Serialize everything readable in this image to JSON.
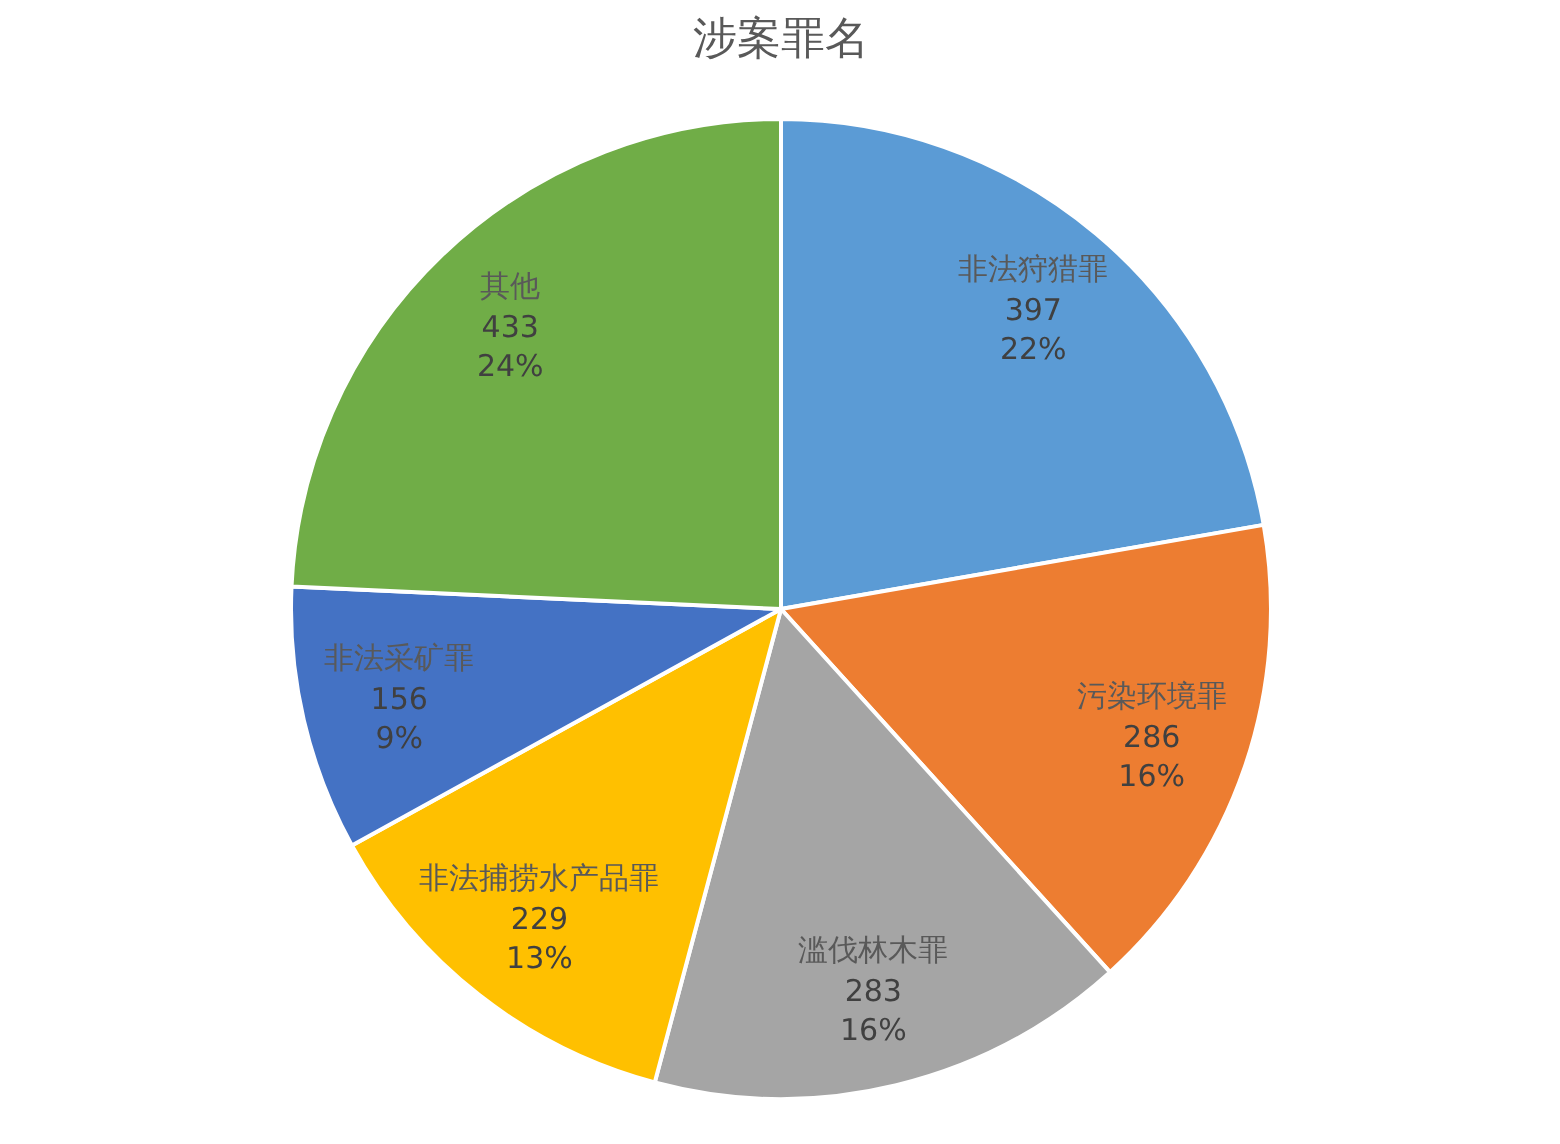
{
  "chart_data": {
    "type": "pie",
    "title": "涉案罪名",
    "categories": [
      "非法狩猎罪",
      "污染环境罪",
      "滥伐林木罪",
      "非法捕捞水产品罪",
      "非法采矿罪",
      "其他"
    ],
    "values": [
      397,
      286,
      283,
      229,
      156,
      433
    ],
    "colors": [
      "#5b9bd5",
      "#ed7d31",
      "#a5a5a5",
      "#ffc000",
      "#4472c4",
      "#70ad47"
    ],
    "value_labels": [
      "397\n22%",
      "286\n16%",
      "283\n16%",
      "229\n13%",
      "156\n9%",
      "433\n24%"
    ]
  }
}
